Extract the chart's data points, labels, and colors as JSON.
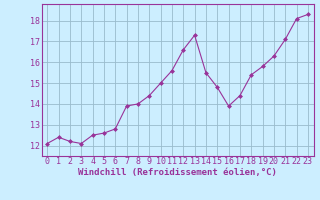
{
  "x": [
    0,
    1,
    2,
    3,
    4,
    5,
    6,
    7,
    8,
    9,
    10,
    11,
    12,
    13,
    14,
    15,
    16,
    17,
    18,
    19,
    20,
    21,
    22,
    23
  ],
  "y": [
    12.1,
    12.4,
    12.2,
    12.1,
    12.5,
    12.6,
    12.8,
    13.9,
    14.0,
    14.4,
    15.0,
    15.6,
    16.6,
    17.3,
    15.5,
    14.8,
    13.9,
    14.4,
    15.4,
    15.8,
    16.3,
    17.1,
    18.1,
    18.3
  ],
  "line_color": "#993399",
  "marker": "D",
  "marker_size": 2.0,
  "bg_color": "#cceeff",
  "grid_color": "#99bbcc",
  "axis_color": "#993399",
  "xlabel": "Windchill (Refroidissement éolien,°C)",
  "xlim": [
    -0.5,
    23.5
  ],
  "ylim": [
    11.5,
    18.8
  ],
  "yticks": [
    12,
    13,
    14,
    15,
    16,
    17,
    18
  ],
  "xticks": [
    0,
    1,
    2,
    3,
    4,
    5,
    6,
    7,
    8,
    9,
    10,
    11,
    12,
    13,
    14,
    15,
    16,
    17,
    18,
    19,
    20,
    21,
    22,
    23
  ],
  "label_fontsize": 6.5,
  "tick_fontsize": 6.0
}
